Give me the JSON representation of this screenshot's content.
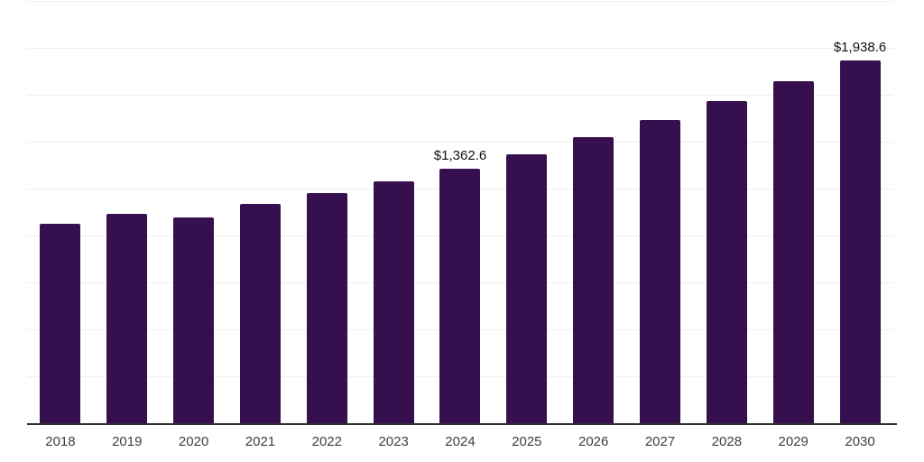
{
  "chart_data": {
    "type": "bar",
    "title": "",
    "xlabel": "",
    "ylabel": "",
    "categories": [
      "2018",
      "2019",
      "2020",
      "2021",
      "2022",
      "2023",
      "2024",
      "2025",
      "2026",
      "2027",
      "2028",
      "2029",
      "2030"
    ],
    "values": [
      1067,
      1120,
      1101,
      1173,
      1231,
      1293,
      1362.6,
      1438,
      1529,
      1620,
      1721,
      1827,
      1938.6
    ],
    "labels": [
      "",
      "",
      "",
      "",
      "",
      "",
      "$1,362.6",
      "",
      "",
      "",
      "",
      "",
      "$1,938.6"
    ],
    "ylim": [
      0,
      2250
    ],
    "gridline_interval": 250,
    "grid_on": true,
    "legend_position": "none",
    "bar_color": "#36104e",
    "grid_color": "#efefef",
    "axis_color": "#2f2f2f"
  }
}
